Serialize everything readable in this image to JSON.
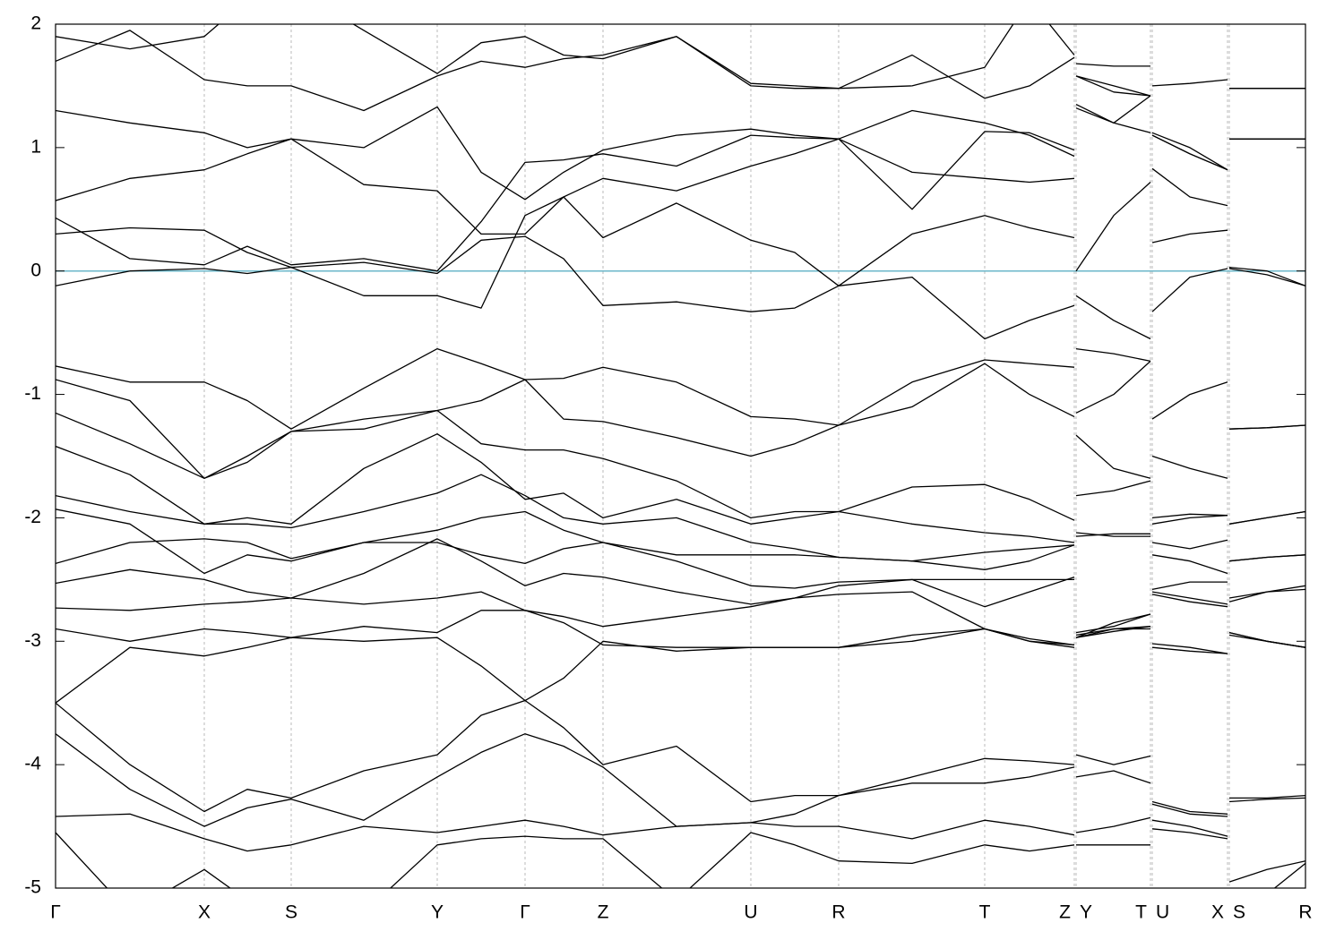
{
  "chart_data": {
    "type": "line",
    "color": "#000000",
    "hline": {
      "y": 0,
      "color": "#6bb7c9"
    },
    "grid": "x",
    "xlim": [
      0,
      13.95
    ],
    "ylim": [
      -5,
      2
    ],
    "yticks": [
      -5,
      -4,
      -3,
      -2,
      -1,
      0,
      1,
      2
    ],
    "xticks": [
      {
        "value": 0,
        "label": "Γ"
      },
      {
        "value": 1.66,
        "label": "X"
      },
      {
        "value": 2.63,
        "label": "S"
      },
      {
        "value": 4.26,
        "label": "Y"
      },
      {
        "value": 5.24,
        "label": "Γ"
      },
      {
        "value": 6.11,
        "label": "Z"
      },
      {
        "value": 7.76,
        "label": "U"
      },
      {
        "value": 8.74,
        "label": "R"
      },
      {
        "value": 10.37,
        "label": "T"
      },
      {
        "value": 11.37,
        "label": "Z"
      },
      {
        "value": 11.39,
        "label": "Y"
      },
      {
        "value": 12.22,
        "label": "T"
      },
      {
        "value": 12.24,
        "label": "U"
      },
      {
        "value": 13.08,
        "label": "X"
      },
      {
        "value": 13.1,
        "label": "S"
      },
      {
        "value": 13.95,
        "label": "R"
      }
    ],
    "x": [
      0,
      0.83,
      1.66,
      2.14,
      2.63,
      3.44,
      4.26,
      4.75,
      5.24,
      5.67,
      6.11,
      6.93,
      7.76,
      8.25,
      8.74,
      9.56,
      10.37,
      10.87,
      11.37,
      11.38,
      11.39,
      11.81,
      12.22,
      12.23,
      12.24,
      12.66,
      13.08,
      13.09,
      13.1,
      13.52,
      13.95
    ],
    "series": [
      {
        "values": [
          -0.12,
          0.0,
          0.02,
          -0.02,
          0.03,
          0.07,
          -0.02,
          0.25,
          0.28,
          0.1,
          -0.28,
          -0.25,
          -0.33,
          -0.3,
          -0.12,
          -0.05,
          -0.55,
          -0.4,
          -0.28,
          null,
          -0.2,
          -0.4,
          -0.55,
          null,
          -0.33,
          -0.05,
          0.02,
          null,
          0.02,
          -0.03,
          -0.12
        ]
      },
      {
        "values": [
          0.3,
          0.35,
          0.33,
          0.15,
          0.03,
          -0.2,
          -0.2,
          -0.3,
          0.45,
          0.6,
          0.27,
          0.55,
          0.25,
          0.15,
          -0.12,
          0.3,
          0.45,
          0.35,
          0.27,
          null,
          0.0,
          0.45,
          0.72,
          null,
          0.23,
          0.3,
          0.33,
          null,
          0.03,
          0.0,
          -0.12
        ]
      },
      {
        "values": [
          0.43,
          0.1,
          0.05,
          0.2,
          0.05,
          0.1,
          0.0,
          0.4,
          0.88,
          0.9,
          0.95,
          0.85,
          1.1,
          1.08,
          1.07,
          1.3,
          1.2,
          1.1,
          0.93,
          null,
          1.58,
          1.5,
          1.42,
          null,
          1.1,
          0.95,
          0.82,
          null,
          1.07,
          1.07,
          1.07
        ]
      },
      {
        "values": [
          0.57,
          0.75,
          0.82,
          0.95,
          1.07,
          0.7,
          0.65,
          0.3,
          0.3,
          0.6,
          0.75,
          0.65,
          0.85,
          0.95,
          1.07,
          0.8,
          0.75,
          0.72,
          0.75,
          null,
          1.32,
          1.2,
          1.12,
          null,
          0.83,
          0.6,
          0.53,
          null,
          1.07,
          1.07,
          1.07
        ]
      },
      {
        "values": [
          1.3,
          1.2,
          1.12,
          1.0,
          1.07,
          1.0,
          1.33,
          0.8,
          0.58,
          0.8,
          0.98,
          1.1,
          1.15,
          1.1,
          1.07,
          0.5,
          1.13,
          1.12,
          0.98,
          null,
          1.35,
          1.2,
          1.42,
          null,
          1.1,
          0.95,
          0.82,
          null,
          1.48,
          1.48,
          1.48
        ]
      },
      {
        "values": [
          1.7,
          1.95,
          1.55,
          1.5,
          1.5,
          1.3,
          1.58,
          1.7,
          1.65,
          1.72,
          1.75,
          1.9,
          1.5,
          1.48,
          1.48,
          1.75,
          1.4,
          1.5,
          1.73,
          null,
          1.68,
          1.66,
          1.66,
          null,
          1.5,
          1.52,
          1.55,
          null,
          1.48,
          1.48,
          1.48
        ]
      },
      {
        "values": [
          1.9,
          1.8,
          1.9,
          2.2,
          2.3,
          1.95,
          1.6,
          1.85,
          1.9,
          1.75,
          1.72,
          1.9,
          1.52,
          1.5,
          1.48,
          1.5,
          1.65,
          2.2,
          1.75,
          null,
          1.58,
          1.45,
          1.42,
          null,
          1.12,
          1.0,
          0.82,
          null,
          1.07,
          1.07,
          1.07
        ]
      },
      {
        "values": [
          -0.77,
          -0.9,
          -0.9,
          -1.05,
          -1.28,
          -0.95,
          -0.63,
          -0.75,
          -0.88,
          -0.87,
          -0.78,
          -0.9,
          -1.18,
          -1.2,
          -1.25,
          -0.9,
          -0.72,
          -0.75,
          -0.78,
          null,
          -0.63,
          -0.67,
          -0.73,
          null,
          -1.2,
          -1.0,
          -0.9,
          null,
          -1.28,
          -1.27,
          -1.25
        ]
      },
      {
        "values": [
          -0.88,
          -1.05,
          -1.68,
          -1.5,
          -1.3,
          -1.2,
          -1.13,
          -1.05,
          -0.88,
          -1.2,
          -1.22,
          -1.35,
          -1.5,
          -1.4,
          -1.25,
          -1.1,
          -0.75,
          -1.0,
          -1.18,
          null,
          -1.15,
          -1.0,
          -0.73,
          null,
          -1.5,
          -1.6,
          -1.68,
          null,
          -1.28,
          -1.27,
          -1.25
        ]
      },
      {
        "values": [
          -1.15,
          -1.4,
          -1.68,
          -1.55,
          -1.3,
          -1.28,
          -1.13,
          -1.4,
          -1.45,
          -1.45,
          -1.52,
          -1.7,
          -2.0,
          -1.95,
          -1.95,
          -1.75,
          -1.73,
          -1.85,
          -2.02,
          null,
          -1.33,
          -1.6,
          -1.68,
          null,
          -2.0,
          -1.97,
          -1.98,
          null,
          -2.05,
          -2.0,
          -1.95
        ]
      },
      {
        "values": [
          -1.42,
          -1.65,
          -2.05,
          -2.0,
          -2.05,
          -1.6,
          -1.32,
          -1.55,
          -1.85,
          -1.8,
          -2.0,
          -1.85,
          -2.05,
          -2.0,
          -1.95,
          -2.05,
          -2.12,
          -2.15,
          -2.2,
          null,
          -1.82,
          -1.78,
          -1.7,
          null,
          -2.05,
          -2.0,
          -1.98,
          null,
          -2.05,
          -2.0,
          -1.95
        ]
      },
      {
        "values": [
          -1.82,
          -1.95,
          -2.05,
          -2.05,
          -2.08,
          -1.95,
          -1.8,
          -1.65,
          -1.82,
          -2.0,
          -2.05,
          -2.0,
          -2.2,
          -2.25,
          -2.32,
          -2.35,
          -2.42,
          -2.35,
          -2.22,
          null,
          -2.12,
          -2.15,
          -2.15,
          null,
          -2.2,
          -2.25,
          -2.18,
          null,
          -2.35,
          -2.32,
          -2.3
        ]
      },
      {
        "values": [
          -1.93,
          -2.05,
          -2.45,
          -2.3,
          -2.35,
          -2.2,
          -2.1,
          -2.0,
          -1.95,
          -2.1,
          -2.2,
          -2.3,
          -2.3,
          -2.3,
          -2.32,
          -2.35,
          -2.28,
          -2.25,
          -2.22,
          null,
          -2.15,
          -2.13,
          -2.13,
          null,
          -2.3,
          -2.35,
          -2.45,
          null,
          -2.35,
          -2.32,
          -2.3
        ]
      },
      {
        "values": [
          -2.37,
          -2.2,
          -2.17,
          -2.2,
          -2.33,
          -2.2,
          -2.2,
          -2.3,
          -2.37,
          -2.25,
          -2.2,
          -2.35,
          -2.55,
          -2.57,
          -2.52,
          -2.5,
          -2.5,
          -2.5,
          -2.5,
          null,
          -2.93,
          -2.88,
          -2.78,
          null,
          -2.58,
          -2.52,
          -2.52,
          null,
          -2.65,
          -2.6,
          -2.55
        ]
      },
      {
        "values": [
          -2.53,
          -2.42,
          -2.5,
          -2.6,
          -2.65,
          -2.45,
          -2.17,
          -2.35,
          -2.55,
          -2.45,
          -2.48,
          -2.6,
          -2.7,
          -2.65,
          -2.55,
          -2.5,
          -2.72,
          -2.6,
          -2.48,
          null,
          -2.95,
          -2.9,
          -2.9,
          null,
          -2.6,
          -2.65,
          -2.7,
          null,
          -2.68,
          -2.6,
          -2.58
        ]
      },
      {
        "values": [
          -2.73,
          -2.75,
          -2.7,
          -2.68,
          -2.65,
          -2.7,
          -2.65,
          -2.6,
          -2.75,
          -2.8,
          -2.88,
          -2.8,
          -2.72,
          -2.65,
          -2.62,
          -2.6,
          -2.9,
          -3.0,
          -3.05,
          null,
          -2.97,
          -2.92,
          -2.88,
          null,
          -2.62,
          -2.68,
          -2.72,
          null,
          -2.95,
          -3.0,
          -3.05
        ]
      },
      {
        "values": [
          -2.9,
          -3.0,
          -2.9,
          -2.93,
          -2.97,
          -2.88,
          -2.93,
          -2.75,
          -2.75,
          -2.85,
          -3.03,
          -3.05,
          -3.05,
          -3.05,
          -3.05,
          -2.95,
          -2.9,
          -2.98,
          -3.03,
          null,
          -2.97,
          -2.85,
          -2.78,
          null,
          -3.02,
          -3.05,
          -3.1,
          null,
          -2.93,
          -3.0,
          -3.05
        ]
      },
      {
        "values": [
          -3.5,
          -3.05,
          -3.12,
          -3.05,
          -2.97,
          -3.0,
          -2.97,
          -3.2,
          -3.48,
          -3.3,
          -3.0,
          -3.08,
          -3.05,
          -3.05,
          -3.05,
          -3.0,
          -2.9,
          -3.0,
          -3.03,
          null,
          -2.97,
          -2.9,
          -2.88,
          null,
          -3.05,
          -3.08,
          -3.1,
          null,
          -2.93,
          -3.0,
          -3.05
        ]
      },
      {
        "values": [
          -3.5,
          -4.0,
          -4.38,
          -4.2,
          -4.27,
          -4.05,
          -3.92,
          -3.6,
          -3.48,
          -3.7,
          -4.0,
          -3.85,
          -4.3,
          -4.25,
          -4.25,
          -4.1,
          -3.95,
          -3.97,
          -4.0,
          null,
          -3.92,
          -4.0,
          -3.93,
          null,
          -4.3,
          -4.38,
          -4.4,
          null,
          -4.27,
          -4.27,
          -4.25
        ]
      },
      {
        "values": [
          -3.75,
          -4.2,
          -4.5,
          -4.35,
          -4.28,
          -4.45,
          -4.1,
          -3.9,
          -3.75,
          -3.85,
          -4.02,
          -4.5,
          -4.47,
          -4.4,
          -4.25,
          -4.15,
          -4.15,
          -4.1,
          -4.02,
          null,
          -4.1,
          -4.05,
          -4.15,
          null,
          -4.32,
          -4.4,
          -4.42,
          null,
          -4.3,
          -4.28,
          -4.27
        ]
      },
      {
        "values": [
          -4.42,
          -4.4,
          -4.6,
          -4.7,
          -4.65,
          -4.5,
          -4.55,
          -4.5,
          -4.45,
          -4.5,
          -4.57,
          -4.5,
          -4.47,
          -4.5,
          -4.5,
          -4.6,
          -4.45,
          -4.5,
          -4.57,
          null,
          -4.55,
          -4.5,
          -4.43,
          null,
          -4.45,
          -4.5,
          -4.58,
          null,
          -4.95,
          -4.85,
          -4.78
        ]
      },
      {
        "values": [
          -4.55,
          -5.2,
          -4.85,
          -5.1,
          -5.3,
          -5.2,
          -4.65,
          -4.6,
          -4.58,
          -4.6,
          -4.6,
          -5.1,
          -4.55,
          -4.65,
          -4.78,
          -4.8,
          -4.65,
          -4.7,
          -4.65,
          null,
          -4.65,
          -4.65,
          -4.65,
          null,
          -4.52,
          -4.55,
          -4.6,
          null,
          -5.2,
          -5.05,
          -4.8
        ]
      }
    ]
  }
}
